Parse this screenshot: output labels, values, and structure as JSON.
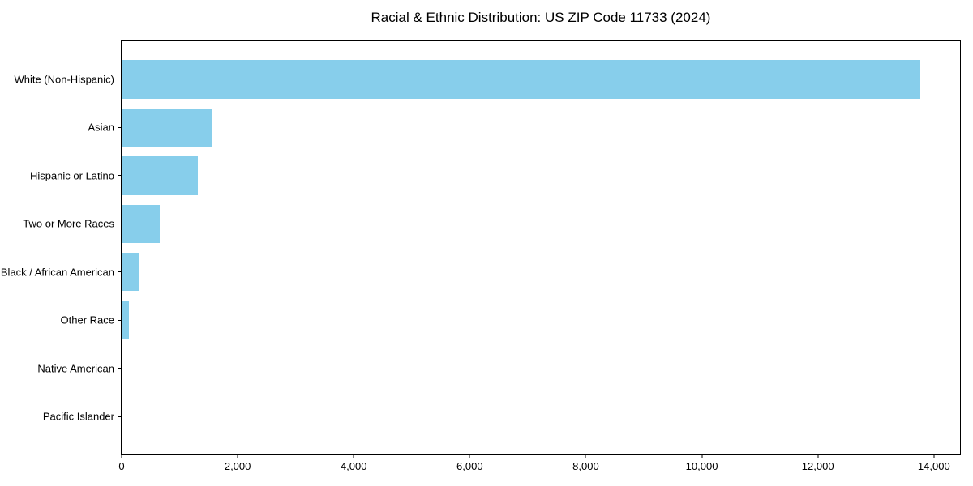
{
  "title": "Racial & Ethnic Distribution: US ZIP Code 11733 (2024)",
  "colors": {
    "bar": "#87CEEB",
    "axis": "#000000",
    "text": "#000000",
    "background": "#FFFFFF"
  },
  "chart_data": {
    "type": "bar",
    "orientation": "horizontal",
    "title": "Racial & Ethnic Distribution: US ZIP Code 11733 (2024)",
    "xlabel": "",
    "ylabel": "",
    "categories": [
      "White (Non-Hispanic)",
      "Asian",
      "Hispanic or Latino",
      "Two or More Races",
      "Black / African American",
      "Other Race",
      "Native American",
      "Pacific Islander"
    ],
    "values": [
      13770,
      1545,
      1320,
      655,
      300,
      130,
      10,
      5
    ],
    "xlim": [
      0,
      14450
    ],
    "x_ticks": [
      0,
      2000,
      4000,
      6000,
      8000,
      10000,
      12000,
      14000
    ],
    "x_tick_labels": [
      "0",
      "2,000",
      "4,000",
      "6,000",
      "8,000",
      "10,000",
      "12,000",
      "14,000"
    ],
    "grid": false,
    "legend": null,
    "bar_color": "#87CEEB"
  }
}
